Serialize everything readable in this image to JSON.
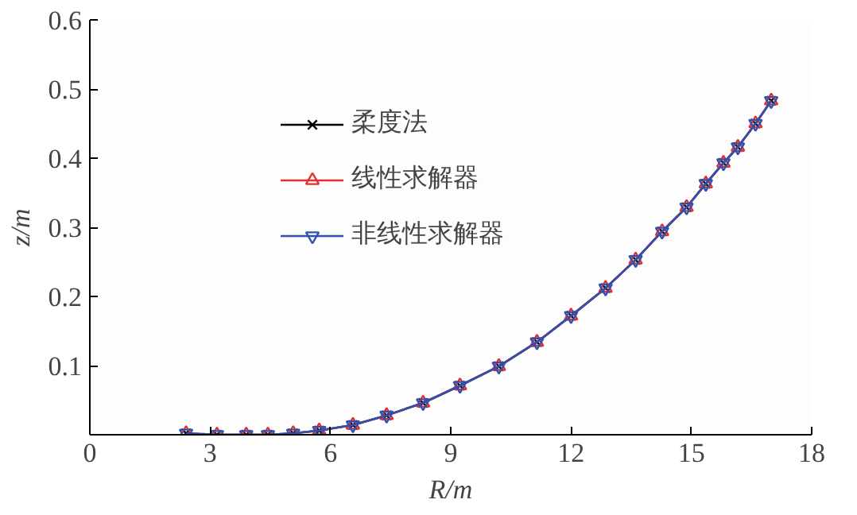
{
  "chart_data": {
    "type": "line",
    "xlabel": "R/m",
    "ylabel": "z/m",
    "xlim": [
      0,
      18
    ],
    "ylim": [
      0,
      0.6
    ],
    "xticks": [
      0,
      3,
      6,
      9,
      12,
      15,
      18
    ],
    "yticks": [
      0.1,
      0.2,
      0.3,
      0.4,
      0.5,
      0.6
    ],
    "x": [
      2.4,
      3.17,
      3.9,
      4.44,
      5.07,
      5.72,
      6.56,
      7.4,
      8.31,
      9.23,
      10.2,
      11.15,
      12.0,
      12.86,
      13.61,
      14.27,
      14.88,
      15.36,
      15.8,
      16.16,
      16.6,
      16.99
    ],
    "series": [
      {
        "name": "柔度法",
        "color": "#000000",
        "marker": "cross",
        "values": [
          0.002,
          0,
          0,
          0,
          0.002,
          0.006,
          0.014,
          0.028,
          0.046,
          0.071,
          0.099,
          0.134,
          0.172,
          0.212,
          0.253,
          0.294,
          0.329,
          0.363,
          0.393,
          0.416,
          0.45,
          0.483
        ]
      },
      {
        "name": "线性求解器",
        "color": "#e03030",
        "marker": "triangle",
        "values": [
          0.002,
          0,
          0,
          0,
          0.002,
          0.006,
          0.014,
          0.028,
          0.046,
          0.071,
          0.099,
          0.134,
          0.172,
          0.212,
          0.253,
          0.294,
          0.329,
          0.363,
          0.393,
          0.416,
          0.45,
          0.483
        ]
      },
      {
        "name": "非线性求解器",
        "color": "#3050b0",
        "marker": "triangle_down",
        "values": [
          0.002,
          0,
          0,
          0,
          0.002,
          0.006,
          0.014,
          0.028,
          0.046,
          0.071,
          0.099,
          0.134,
          0.172,
          0.212,
          0.253,
          0.294,
          0.329,
          0.363,
          0.393,
          0.416,
          0.45,
          0.483
        ]
      }
    ],
    "legend": "top left",
    "grid": false,
    "line_style": "solid"
  }
}
